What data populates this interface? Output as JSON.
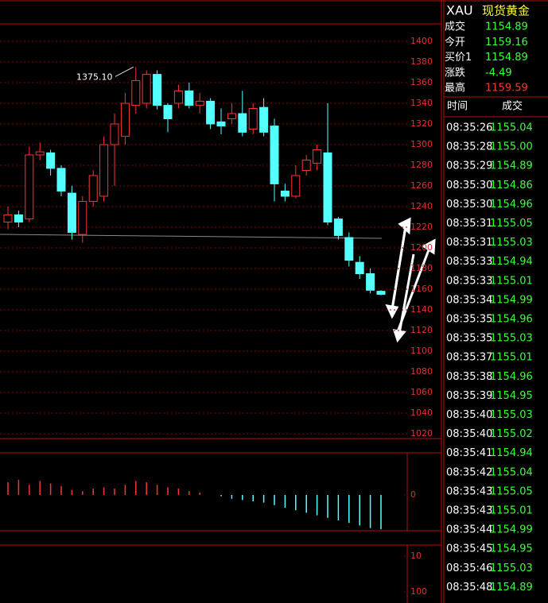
{
  "chart_data": [
    {
      "type": "candlestick",
      "annotation": "1375.10",
      "open": [
        1225,
        1232,
        1228,
        1290,
        1292,
        1277,
        1253,
        1213,
        1245,
        1250,
        1300,
        1308,
        1338,
        1340,
        1368,
        1338,
        1340,
        1352,
        1338,
        1342,
        1322,
        1325,
        1330,
        1315,
        1336,
        1318,
        1255,
        1250,
        1275,
        1282,
        1292,
        1228,
        1210,
        1186,
        1175,
        1158
      ],
      "high": [
        1240,
        1236,
        1298,
        1302,
        1295,
        1280,
        1260,
        1250,
        1275,
        1308,
        1330,
        1350,
        1375.1,
        1372,
        1372,
        1340,
        1358,
        1360,
        1350,
        1345,
        1335,
        1340,
        1352,
        1340,
        1345,
        1325,
        1262,
        1280,
        1290,
        1300,
        1340,
        1230,
        1215,
        1192,
        1180,
        1159
      ],
      "low": [
        1218,
        1220,
        1225,
        1285,
        1270,
        1250,
        1208,
        1205,
        1240,
        1245,
        1260,
        1300,
        1330,
        1335,
        1334,
        1312,
        1335,
        1335,
        1330,
        1315,
        1310,
        1320,
        1308,
        1310,
        1308,
        1245,
        1245,
        1248,
        1270,
        1275,
        1222,
        1208,
        1182,
        1170,
        1156,
        1154
      ],
      "close": [
        1232,
        1225,
        1290,
        1293,
        1277,
        1255,
        1215,
        1245,
        1270,
        1300,
        1320,
        1340,
        1362,
        1368,
        1338,
        1325,
        1352,
        1338,
        1342,
        1320,
        1318,
        1330,
        1312,
        1335,
        1312,
        1262,
        1250,
        1270,
        1285,
        1295,
        1225,
        1212,
        1188,
        1175,
        1159,
        1155
      ],
      "up_color": "#ff3232",
      "down_color": "#54ffff",
      "ylim": [
        1020,
        1400
      ],
      "yticks": [
        1020,
        1040,
        1060,
        1080,
        1100,
        1120,
        1140,
        1160,
        1180,
        1200,
        1220,
        1240,
        1260,
        1280,
        1300,
        1320,
        1340,
        1360,
        1380,
        1400
      ],
      "grid": true
    },
    {
      "type": "bar",
      "values": [
        10,
        12,
        8,
        11,
        9,
        7,
        4,
        3,
        5,
        6,
        5,
        8,
        11,
        10,
        8,
        6,
        5,
        3,
        2,
        0,
        -1,
        -3,
        -4,
        -5,
        -6,
        -8,
        -10,
        -12,
        -14,
        -16,
        -18,
        -20,
        -22,
        -24,
        -26,
        -27
      ],
      "up_color": "#ff3232",
      "down_color": "#54ffff",
      "ylim": [
        -30,
        30
      ],
      "yticks": [
        0
      ]
    },
    {
      "type": "line",
      "ylim": [
        10,
        100
      ],
      "yticks": [
        10,
        100
      ]
    }
  ],
  "header": {
    "symbol": "XAU",
    "name": "现货黄金"
  },
  "quote": [
    [
      "成交",
      "1154.89"
    ],
    [
      "今开",
      "1159.16"
    ],
    [
      "买价1",
      "1154.89"
    ],
    [
      "涨跌",
      "-4.49"
    ],
    [
      "最高",
      "1159.59"
    ]
  ],
  "ticks": {
    "columns": [
      "时间",
      "成交"
    ],
    "rows": [
      [
        "08:35:26",
        "1155.04"
      ],
      [
        "08:35:28",
        "1155.00"
      ],
      [
        "08:35:29",
        "1154.89"
      ],
      [
        "08:35:30",
        "1154.86"
      ],
      [
        "08:35:30",
        "1154.96"
      ],
      [
        "08:35:31",
        "1155.05"
      ],
      [
        "08:35:31",
        "1155.03"
      ],
      [
        "08:35:33",
        "1154.94"
      ],
      [
        "08:35:33",
        "1155.01"
      ],
      [
        "08:35:34",
        "1154.99"
      ],
      [
        "08:35:35",
        "1154.96"
      ],
      [
        "08:35:35",
        "1155.03"
      ],
      [
        "08:35:37",
        "1155.01"
      ],
      [
        "08:35:38",
        "1154.96"
      ],
      [
        "08:35:39",
        "1154.95"
      ],
      [
        "08:35:40",
        "1155.03"
      ],
      [
        "08:35:40",
        "1155.02"
      ],
      [
        "08:35:41",
        "1154.94"
      ],
      [
        "08:35:42",
        "1155.04"
      ],
      [
        "08:35:43",
        "1155.05"
      ],
      [
        "08:35:43",
        "1155.01"
      ],
      [
        "08:35:44",
        "1154.99"
      ],
      [
        "08:35:45",
        "1154.95"
      ],
      [
        "08:35:46",
        "1155.03"
      ],
      [
        "08:35:48",
        "1154.89"
      ]
    ]
  }
}
